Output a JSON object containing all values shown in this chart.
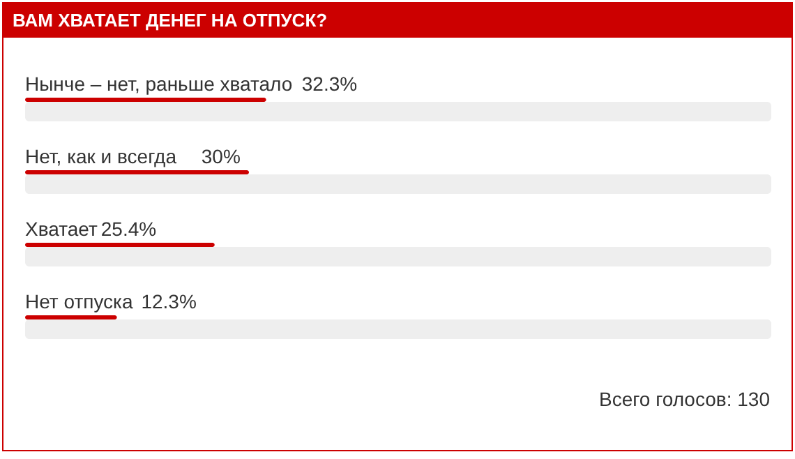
{
  "chart_data": {
    "type": "bar",
    "orientation": "horizontal",
    "title": "ВАМ ХВАТАЕТ ДЕНЕГ НА ОТПУСК?",
    "categories": [
      "Нынче – нет, раньше хватало",
      "Нет, как и всегда",
      "Хватает",
      "Нет отпуска"
    ],
    "series": [
      {
        "color": "#cc0000",
        "values": [
          32.3,
          30,
          25.4,
          12.3
        ],
        "value_labels": [
          "32.3%",
          "30%",
          "25.4%",
          "12.3%"
        ]
      },
      {
        "color": "#eeeeee",
        "values": [
          100,
          100,
          100,
          100
        ]
      }
    ],
    "xlim": [
      0,
      100
    ],
    "annotations": [
      "Всего голосов: 130"
    ]
  }
}
